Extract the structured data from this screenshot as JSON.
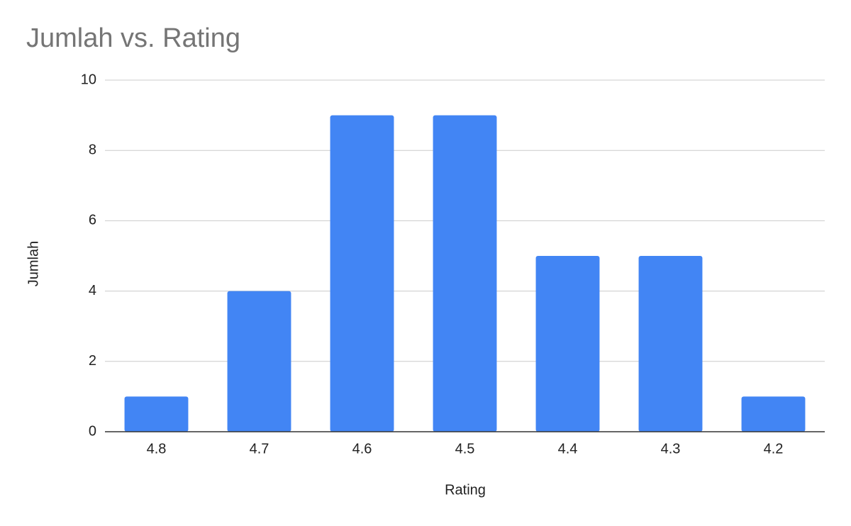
{
  "chart_data": {
    "type": "bar",
    "title": "Jumlah vs. Rating",
    "x_label": "Rating",
    "y_label": "Jumlah",
    "categories": [
      "4.8",
      "4.7",
      "4.6",
      "4.5",
      "4.4",
      "4.3",
      "4.2"
    ],
    "values": [
      1,
      4,
      9,
      9,
      5,
      5,
      1
    ],
    "color": "#4285f4",
    "ylim": [
      0,
      10
    ],
    "yticks": [
      0,
      2,
      4,
      6,
      8,
      10
    ],
    "grid": true
  }
}
